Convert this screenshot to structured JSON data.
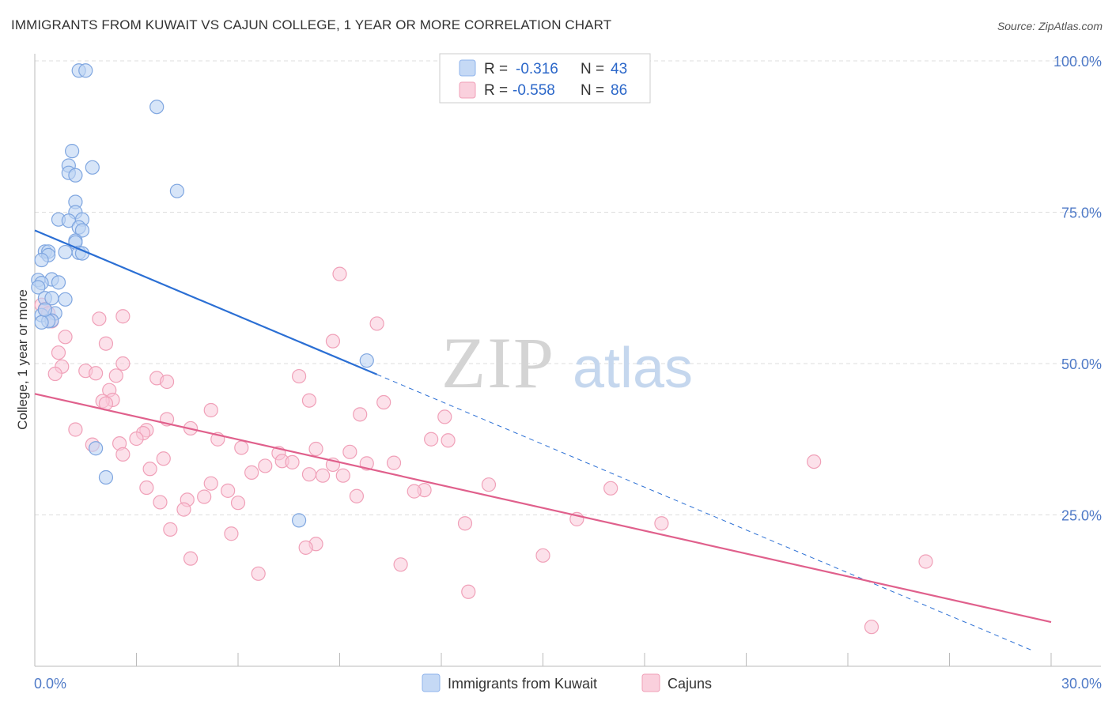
{
  "title": "IMMIGRANTS FROM KUWAIT VS CAJUN COLLEGE, 1 YEAR OR MORE CORRELATION CHART",
  "source": "Source: ZipAtlas.com",
  "watermark": {
    "zip": "ZIP",
    "atlas": "atlas"
  },
  "legend": {
    "r_label": "R =",
    "n_label": "N =",
    "rows": [
      {
        "r": "-0.316",
        "n": "43",
        "color": "#8fb4ec"
      },
      {
        "r": "-0.558",
        "n": "86",
        "color": "#f0a0b8"
      }
    ]
  },
  "bottom_legend": [
    "Immigrants from Kuwait",
    "Cajuns"
  ],
  "chart_data": {
    "type": "scatter",
    "title": "IMMIGRANTS FROM KUWAIT VS CAJUN COLLEGE, 1 YEAR OR MORE CORRELATION CHART",
    "xlabel": "",
    "ylabel": "College, 1 year or more",
    "xlim": [
      0,
      30
    ],
    "ylim": [
      0,
      100
    ],
    "x_tick_labels": [
      "0.0%",
      "30.0%"
    ],
    "y_ticks": [
      25,
      50,
      75,
      100
    ],
    "y_tick_labels": [
      "25.0%",
      "50.0%",
      "75.0%",
      "100.0%"
    ],
    "grid": true,
    "series": [
      {
        "name": "Immigrants from Kuwait",
        "color": "#8fb4ec",
        "line_color": "#2b6fd4",
        "R": -0.316,
        "N": 43,
        "trend": {
          "x_start": 0,
          "y_start": 72.0,
          "x_solid_end": 10.1,
          "x_dash_end": 29.5
        },
        "points": [
          [
            1.3,
            98.4
          ],
          [
            1.5,
            98.4
          ],
          [
            3.6,
            92.4
          ],
          [
            4.2,
            78.5
          ],
          [
            1.1,
            85.1
          ],
          [
            1.0,
            82.7
          ],
          [
            1.7,
            82.4
          ],
          [
            1.0,
            81.5
          ],
          [
            1.2,
            81.1
          ],
          [
            1.2,
            76.7
          ],
          [
            1.2,
            75.0
          ],
          [
            0.7,
            73.8
          ],
          [
            1.4,
            73.8
          ],
          [
            1.0,
            73.6
          ],
          [
            1.3,
            72.5
          ],
          [
            1.4,
            72.0
          ],
          [
            1.2,
            70.3
          ],
          [
            1.2,
            70.0
          ],
          [
            0.3,
            68.5
          ],
          [
            0.4,
            68.5
          ],
          [
            0.9,
            68.4
          ],
          [
            1.3,
            68.3
          ],
          [
            1.4,
            68.2
          ],
          [
            0.4,
            67.9
          ],
          [
            0.2,
            67.1
          ],
          [
            0.5,
            63.9
          ],
          [
            0.1,
            63.8
          ],
          [
            0.2,
            63.3
          ],
          [
            0.1,
            62.6
          ],
          [
            0.7,
            63.4
          ],
          [
            0.3,
            60.8
          ],
          [
            0.5,
            60.8
          ],
          [
            0.9,
            60.6
          ],
          [
            0.6,
            58.3
          ],
          [
            0.2,
            58.0
          ],
          [
            0.5,
            57.1
          ],
          [
            0.4,
            57.0
          ],
          [
            0.2,
            56.8
          ],
          [
            0.3,
            58.9
          ],
          [
            9.8,
            50.5
          ],
          [
            1.8,
            36.0
          ],
          [
            2.1,
            31.2
          ],
          [
            7.8,
            24.1
          ]
        ]
      },
      {
        "name": "Cajuns",
        "color": "#f0a0b8",
        "line_color": "#e0608c",
        "R": -0.558,
        "N": 86,
        "trend": {
          "x_start": 0,
          "y_start": 45.0,
          "x_end": 30,
          "y_end": 7.3
        },
        "points": [
          [
            9.0,
            64.8
          ],
          [
            0.2,
            59.7
          ],
          [
            0.3,
            59.0
          ],
          [
            0.4,
            58.3
          ],
          [
            0.5,
            57.0
          ],
          [
            2.6,
            57.8
          ],
          [
            1.9,
            57.4
          ],
          [
            10.1,
            56.6
          ],
          [
            8.8,
            53.7
          ],
          [
            0.9,
            54.4
          ],
          [
            2.1,
            53.3
          ],
          [
            0.7,
            51.8
          ],
          [
            2.6,
            50.0
          ],
          [
            0.8,
            49.5
          ],
          [
            1.5,
            48.8
          ],
          [
            1.8,
            48.4
          ],
          [
            0.6,
            48.3
          ],
          [
            2.4,
            48.0
          ],
          [
            3.6,
            47.6
          ],
          [
            7.8,
            47.9
          ],
          [
            3.9,
            47.0
          ],
          [
            2.2,
            45.6
          ],
          [
            2.3,
            44.0
          ],
          [
            2.0,
            43.8
          ],
          [
            2.1,
            43.4
          ],
          [
            8.1,
            43.9
          ],
          [
            10.3,
            43.6
          ],
          [
            5.2,
            42.3
          ],
          [
            9.6,
            41.6
          ],
          [
            12.1,
            41.2
          ],
          [
            3.9,
            40.8
          ],
          [
            1.2,
            39.1
          ],
          [
            4.6,
            39.3
          ],
          [
            3.3,
            39.0
          ],
          [
            3.2,
            38.5
          ],
          [
            3.0,
            37.6
          ],
          [
            5.4,
            37.5
          ],
          [
            11.7,
            37.5
          ],
          [
            12.2,
            37.3
          ],
          [
            2.5,
            36.8
          ],
          [
            1.7,
            36.6
          ],
          [
            6.1,
            36.1
          ],
          [
            8.3,
            35.9
          ],
          [
            9.3,
            35.4
          ],
          [
            7.2,
            35.2
          ],
          [
            2.6,
            35.0
          ],
          [
            3.8,
            34.3
          ],
          [
            7.3,
            33.9
          ],
          [
            7.6,
            33.7
          ],
          [
            9.8,
            33.5
          ],
          [
            8.8,
            33.3
          ],
          [
            10.6,
            33.6
          ],
          [
            6.8,
            33.1
          ],
          [
            23.0,
            33.8
          ],
          [
            3.4,
            32.6
          ],
          [
            6.4,
            32.0
          ],
          [
            8.1,
            31.7
          ],
          [
            8.5,
            31.5
          ],
          [
            9.1,
            31.5
          ],
          [
            5.2,
            30.2
          ],
          [
            13.4,
            30.0
          ],
          [
            17.0,
            29.4
          ],
          [
            11.5,
            29.1
          ],
          [
            11.2,
            28.9
          ],
          [
            5.7,
            29.0
          ],
          [
            9.5,
            28.1
          ],
          [
            5.0,
            28.0
          ],
          [
            6.0,
            27.0
          ],
          [
            4.5,
            27.5
          ],
          [
            3.7,
            27.1
          ],
          [
            4.4,
            25.9
          ],
          [
            16.0,
            24.3
          ],
          [
            18.5,
            23.6
          ],
          [
            12.7,
            23.6
          ],
          [
            4.0,
            22.6
          ],
          [
            5.8,
            21.9
          ],
          [
            8.3,
            20.2
          ],
          [
            8.0,
            19.6
          ],
          [
            15.0,
            18.3
          ],
          [
            4.6,
            17.8
          ],
          [
            10.8,
            16.8
          ],
          [
            26.3,
            17.3
          ],
          [
            6.6,
            15.3
          ],
          [
            12.8,
            12.3
          ],
          [
            24.7,
            6.5
          ],
          [
            3.3,
            29.5
          ]
        ]
      }
    ]
  }
}
